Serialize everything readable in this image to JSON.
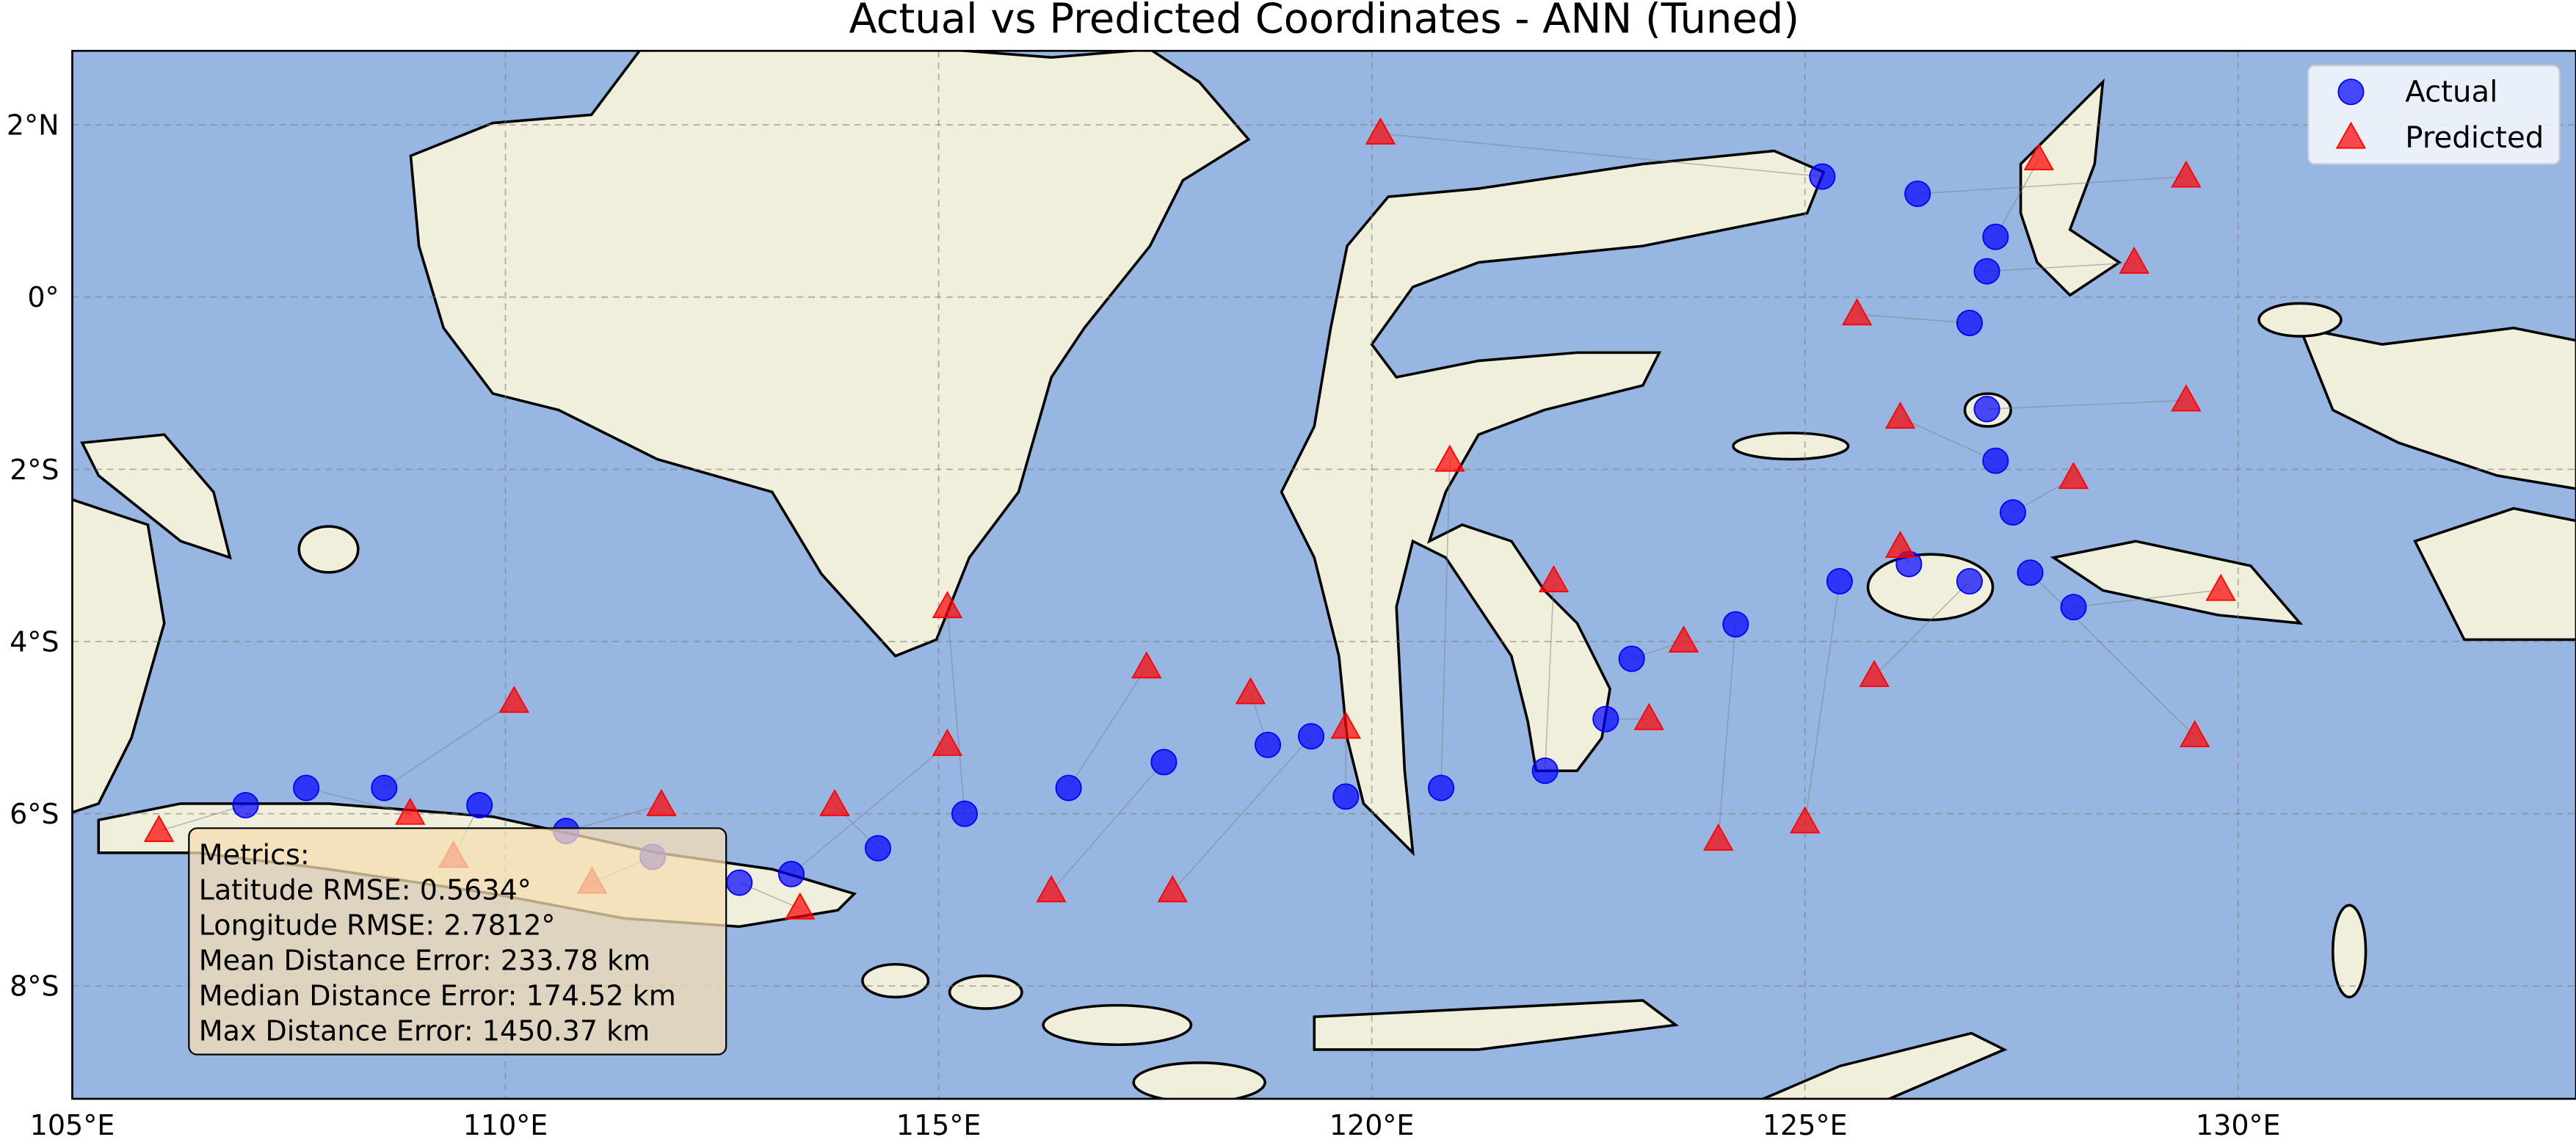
{
  "chart_data": {
    "type": "scatter",
    "title": "Actual vs Predicted Coordinates - ANN (Tuned)",
    "xlim": [
      105,
      133.9
    ],
    "ylim": [
      -9.31,
      2.86
    ],
    "xticks": [
      {
        "value": 105,
        "label": "105°E"
      },
      {
        "value": 110,
        "label": "110°E"
      },
      {
        "value": 115,
        "label": "115°E"
      },
      {
        "value": 120,
        "label": "120°E"
      },
      {
        "value": 125,
        "label": "125°E"
      },
      {
        "value": 130,
        "label": "130°E"
      }
    ],
    "yticks": [
      {
        "value": 2,
        "label": "2°N"
      },
      {
        "value": 0,
        "label": "0°"
      },
      {
        "value": -2,
        "label": "2°S"
      },
      {
        "value": -4,
        "label": "4°S"
      },
      {
        "value": -6,
        "label": "6°S"
      },
      {
        "value": -8,
        "label": "8°S"
      }
    ],
    "grid": true,
    "legend": "upper right",
    "series": [
      {
        "name": "Actual",
        "color": "#0000ff",
        "marker": "circle",
        "x": [
          107.0,
          107.7,
          108.6,
          109.7,
          110.7,
          111.7,
          112.7,
          113.3,
          114.3,
          115.3,
          116.5,
          117.6,
          118.8,
          119.3,
          119.7,
          120.8,
          122.0,
          122.7,
          123.0,
          124.2,
          125.4,
          126.2,
          126.9,
          127.6,
          128.1,
          127.4,
          127.2,
          127.1,
          126.9,
          127.1,
          127.2,
          126.3,
          125.2
        ],
        "y": [
          -5.9,
          -5.7,
          -5.7,
          -5.9,
          -6.2,
          -6.5,
          -6.8,
          -6.7,
          -6.4,
          -6.0,
          -5.7,
          -5.4,
          -5.2,
          -5.1,
          -5.8,
          -5.7,
          -5.5,
          -4.9,
          -4.2,
          -3.8,
          -3.3,
          -3.1,
          -3.3,
          -3.2,
          -3.6,
          -2.5,
          -1.9,
          -1.3,
          -0.3,
          0.3,
          0.7,
          1.2,
          1.4
        ]
      },
      {
        "name": "Predicted",
        "color": "#ff0000",
        "marker": "triangle",
        "x": [
          106.0,
          108.9,
          110.1,
          109.4,
          111.8,
          111.0,
          113.4,
          115.1,
          113.8,
          115.1,
          117.4,
          116.3,
          118.6,
          117.7,
          119.7,
          120.9,
          122.1,
          123.2,
          123.6,
          124.0,
          125.0,
          126.1,
          125.8,
          129.5,
          129.8,
          128.1,
          126.1,
          129.4,
          125.6,
          128.8,
          127.7,
          129.4,
          120.1
        ],
        "y": [
          -6.2,
          -6.0,
          -4.7,
          -6.5,
          -5.9,
          -6.8,
          -7.1,
          -5.2,
          -5.9,
          -3.6,
          -4.3,
          -6.9,
          -4.6,
          -6.9,
          -5.0,
          -1.9,
          -3.3,
          -4.9,
          -4.0,
          -6.3,
          -6.1,
          -2.9,
          -4.4,
          -5.1,
          -3.4,
          -2.1,
          -1.4,
          -1.2,
          -0.2,
          0.4,
          1.6,
          1.4,
          1.9
        ]
      }
    ],
    "annotation": [
      "Metrics:",
      "Latitude RMSE: 0.5634°",
      "Longitude RMSE: 2.7812°",
      "Mean Distance Error: 233.78 km",
      "Median Distance Error: 174.52 km",
      "Max Distance Error: 1450.37 km"
    ]
  }
}
